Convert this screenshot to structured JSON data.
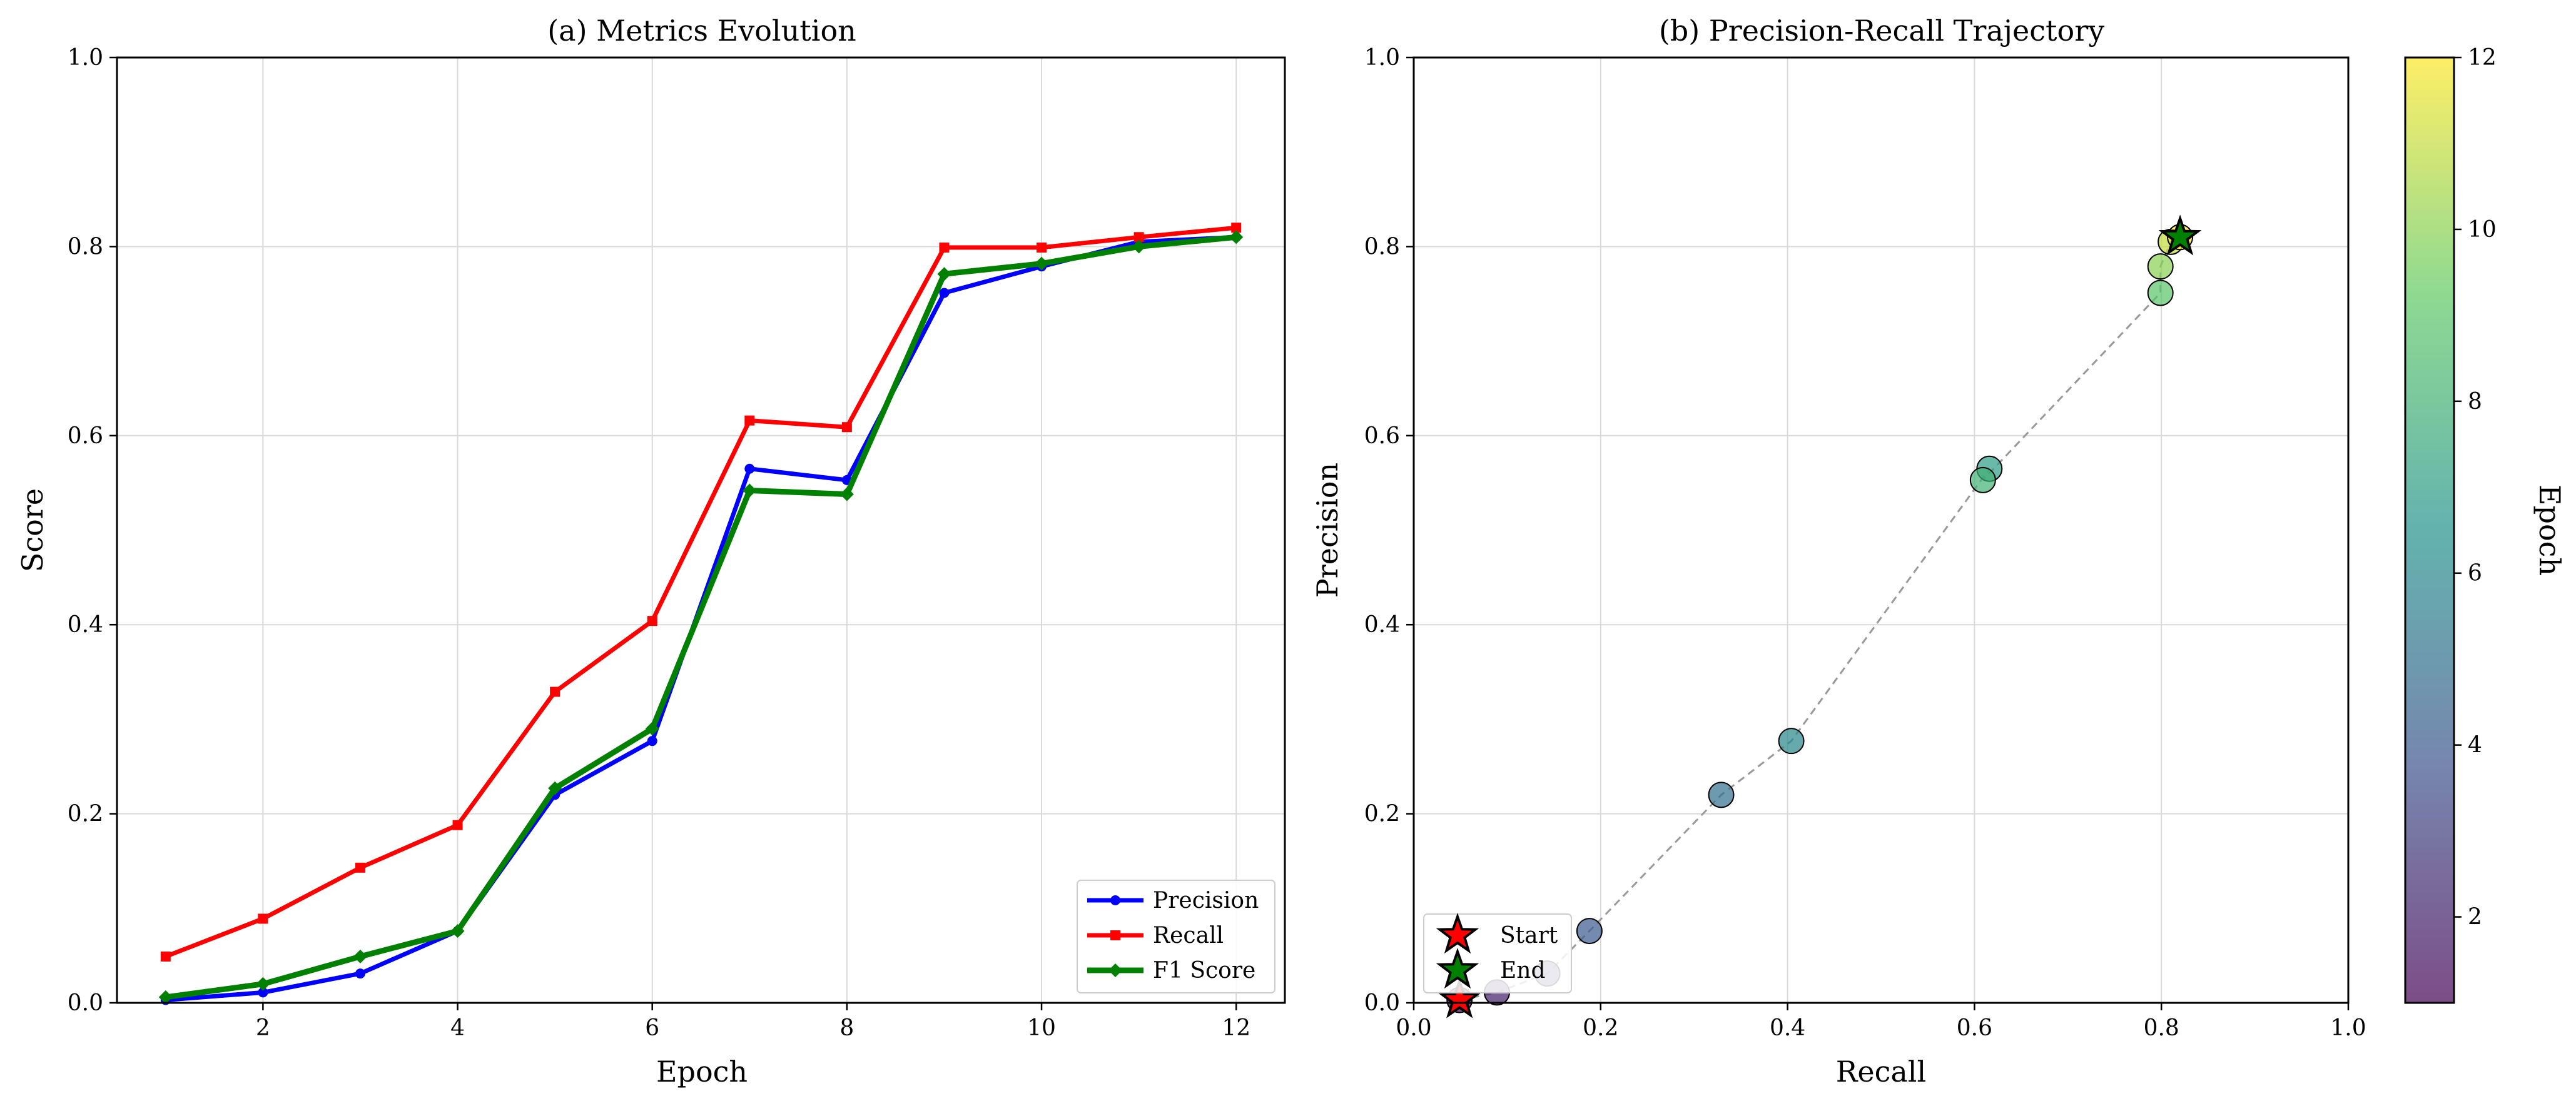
{
  "chart_data": [
    {
      "type": "line",
      "title": "(a) Metrics Evolution",
      "xlabel": "Epoch",
      "ylabel": "Score",
      "xlim": [
        0.5,
        12.5
      ],
      "ylim": [
        0,
        1.0
      ],
      "xticks": [
        "2",
        "4",
        "6",
        "8",
        "10",
        "12"
      ],
      "yticks": [
        "0.0",
        "0.2",
        "0.4",
        "0.6",
        "0.8",
        "1.0"
      ],
      "grid": true,
      "legend_position": "lower-right",
      "x": [
        1,
        2,
        3,
        4,
        5,
        6,
        7,
        8,
        9,
        10,
        11,
        12
      ],
      "series": [
        {
          "name": "Precision",
          "color": "#0000ff",
          "marker": "circle",
          "values": [
            0.003,
            0.011,
            0.031,
            0.076,
            0.22,
            0.277,
            0.565,
            0.553,
            0.751,
            0.779,
            0.805,
            0.81
          ]
        },
        {
          "name": "Recall",
          "color": "#ff0000",
          "marker": "square",
          "values": [
            0.049,
            0.089,
            0.143,
            0.188,
            0.329,
            0.404,
            0.616,
            0.609,
            0.799,
            0.799,
            0.81,
            0.82
          ]
        },
        {
          "name": "F1 Score",
          "color": "#008000",
          "marker": "diamond",
          "values": [
            0.006,
            0.02,
            0.049,
            0.076,
            0.227,
            0.29,
            0.542,
            0.538,
            0.771,
            0.782,
            0.8,
            0.81
          ]
        }
      ]
    },
    {
      "type": "scatter",
      "title": "(b) Precision-Recall Trajectory",
      "xlabel": "Recall",
      "ylabel": "Precision",
      "xlim": [
        0,
        1.0
      ],
      "ylim": [
        0,
        1.0
      ],
      "xticks": [
        "0.0",
        "0.2",
        "0.4",
        "0.6",
        "0.8",
        "1.0"
      ],
      "yticks": [
        "0.0",
        "0.2",
        "0.4",
        "0.6",
        "0.8",
        "1.0"
      ],
      "grid": true,
      "legend_position": "lower-left",
      "colormap": "viridis",
      "colorbar": {
        "label": "Epoch",
        "range": [
          1,
          12
        ],
        "ticks": [
          "2",
          "4",
          "6",
          "8",
          "10",
          "12"
        ]
      },
      "trajectory_line": "dashed grey",
      "points": [
        {
          "epoch": 1,
          "recall": 0.049,
          "precision": 0.003
        },
        {
          "epoch": 2,
          "recall": 0.089,
          "precision": 0.011
        },
        {
          "epoch": 3,
          "recall": 0.143,
          "precision": 0.031
        },
        {
          "epoch": 4,
          "recall": 0.188,
          "precision": 0.076
        },
        {
          "epoch": 5,
          "recall": 0.329,
          "precision": 0.22
        },
        {
          "epoch": 6,
          "recall": 0.404,
          "precision": 0.277
        },
        {
          "epoch": 7,
          "recall": 0.616,
          "precision": 0.565
        },
        {
          "epoch": 8,
          "recall": 0.609,
          "precision": 0.553
        },
        {
          "epoch": 9,
          "recall": 0.799,
          "precision": 0.751
        },
        {
          "epoch": 10,
          "recall": 0.799,
          "precision": 0.779
        },
        {
          "epoch": 11,
          "recall": 0.81,
          "precision": 0.805
        },
        {
          "epoch": 12,
          "recall": 0.82,
          "precision": 0.81
        }
      ],
      "markers": [
        {
          "name": "Start",
          "color": "#ff0000",
          "recall": 0.049,
          "precision": 0.003
        },
        {
          "name": "End",
          "color": "#008000",
          "recall": 0.82,
          "precision": 0.81
        }
      ]
    }
  ]
}
